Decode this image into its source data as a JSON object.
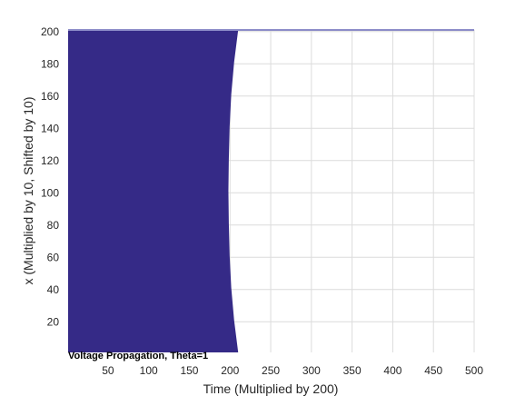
{
  "chart_data": {
    "type": "area",
    "title": "Voltage Propagation, Theta=1",
    "xlabel": "Time (Multiplied by 200)",
    "ylabel": "x (Multiplied by 10, Shifted by 10)",
    "xlim": [
      1,
      500
    ],
    "ylim": [
      1,
      201
    ],
    "xticks": [
      50,
      100,
      150,
      200,
      250,
      300,
      350,
      400,
      450,
      500
    ],
    "yticks": [
      20,
      40,
      60,
      80,
      100,
      120,
      140,
      160,
      180,
      200
    ],
    "grid": true,
    "fill_color": "#352a87",
    "front_boundary": {
      "x": [
        1,
        21,
        41,
        61,
        81,
        101,
        121,
        141,
        161,
        181,
        201
      ],
      "time": [
        210,
        205,
        201.5,
        199.5,
        198.5,
        198,
        198.5,
        199.5,
        201.5,
        205,
        210
      ]
    }
  }
}
